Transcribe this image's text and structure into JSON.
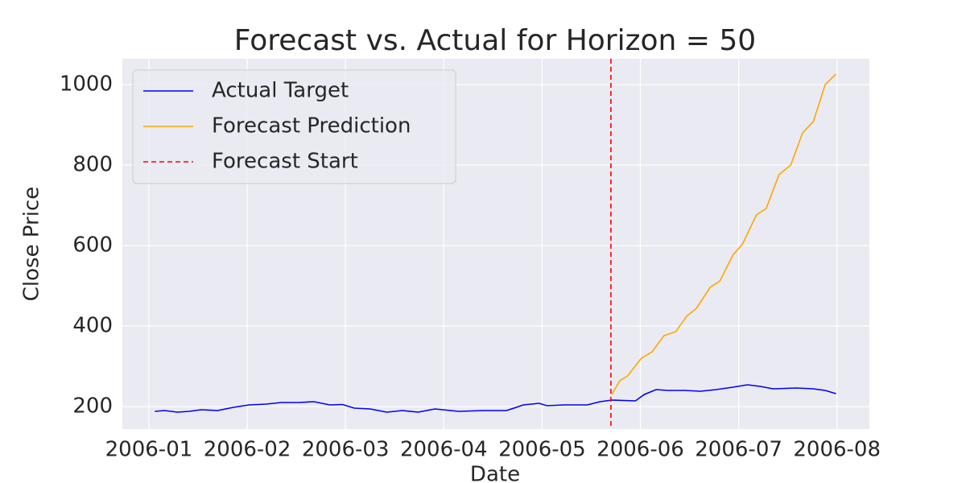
{
  "chart_data": {
    "type": "line",
    "title": "Forecast vs. Actual for Horizon = 50",
    "x_label": "Date",
    "y_label": "Close Price",
    "xlim": [
      0.73,
      8.33
    ],
    "xticks": [
      {
        "value": 1,
        "label": "2006-01"
      },
      {
        "value": 2,
        "label": "2006-02"
      },
      {
        "value": 3,
        "label": "2006-03"
      },
      {
        "value": 4,
        "label": "2006-04"
      },
      {
        "value": 5,
        "label": "2006-05"
      },
      {
        "value": 6,
        "label": "2006-06"
      },
      {
        "value": 7,
        "label": "2006-07"
      },
      {
        "value": 8,
        "label": "2006-08"
      }
    ],
    "ylim": [
      144,
      1064
    ],
    "yticks": [
      200,
      400,
      600,
      800,
      1000
    ],
    "grid": true,
    "legend": "upper left",
    "series": [
      {
        "name": "Actual Target",
        "color": "#0000ff",
        "x": [
          1.06,
          1.16,
          1.29,
          1.41,
          1.53,
          1.7,
          1.86,
          2.02,
          2.19,
          2.35,
          2.52,
          2.68,
          2.84,
          2.97,
          3.09,
          3.25,
          3.42,
          3.58,
          3.74,
          3.91,
          4.15,
          4.4,
          4.64,
          4.81,
          4.97,
          5.05,
          5.22,
          5.46,
          5.59,
          5.71,
          5.95,
          6.04,
          6.16,
          6.28,
          6.45,
          6.61,
          6.77,
          6.94,
          7.09,
          7.22,
          7.35,
          7.59,
          7.76,
          7.88,
          7.99
        ],
        "values": [
          188,
          190,
          186,
          188,
          192,
          190,
          198,
          204,
          206,
          210,
          210,
          212,
          204,
          205,
          196,
          194,
          186,
          190,
          186,
          194,
          188,
          190,
          190,
          204,
          208,
          202,
          204,
          204,
          212,
          216,
          214,
          230,
          242,
          240,
          240,
          238,
          242,
          248,
          254,
          250,
          244,
          246,
          244,
          240,
          232
        ]
      },
      {
        "name": "Forecast Prediction",
        "color": "#ffa500",
        "x": [
          5.71,
          5.79,
          5.87,
          6.01,
          6.12,
          6.24,
          6.36,
          6.47,
          6.57,
          6.71,
          6.81,
          6.94,
          7.04,
          7.18,
          7.28,
          7.41,
          7.53,
          7.65,
          7.76,
          7.88,
          7.99
        ],
        "values": [
          230,
          264,
          276,
          320,
          336,
          376,
          386,
          424,
          444,
          496,
          512,
          576,
          604,
          676,
          692,
          776,
          800,
          880,
          908,
          1000,
          1026
        ]
      }
    ],
    "vline": {
      "name": "Forecast Start",
      "x": 5.7,
      "color": "#ff0000",
      "dashed": true
    }
  }
}
